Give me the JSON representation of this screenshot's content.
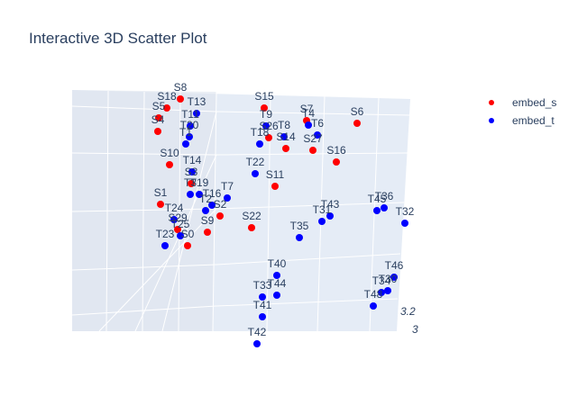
{
  "title": "Interactive 3D Scatter Plot",
  "legend": [
    {
      "name": "embed_s",
      "color": "#ff0000"
    },
    {
      "name": "embed_t",
      "color": "#0000ff"
    }
  ],
  "chart_data": {
    "type": "scatter",
    "title": "Interactive 3D Scatter Plot",
    "axis_tick_labels_visible": [
      "3.2",
      "3"
    ],
    "colors": {
      "embed_s": "#ff0000",
      "embed_t": "#0000ff",
      "scene_bg": "#e5ecf6",
      "grid": "#ffffff"
    },
    "series": [
      {
        "name": "embed_s",
        "points": [
          {
            "label": "S8"
          },
          {
            "label": "S18"
          },
          {
            "label": "S5"
          },
          {
            "label": "S4"
          },
          {
            "label": "S10"
          },
          {
            "label": "S27"
          },
          {
            "label": "S1"
          },
          {
            "label": "S29"
          },
          {
            "label": "S9"
          },
          {
            "label": "S22"
          },
          {
            "label": "S11"
          },
          {
            "label": "S16"
          },
          {
            "label": "S6"
          },
          {
            "label": "S15"
          },
          {
            "label": "S2"
          },
          {
            "label": "S26"
          },
          {
            "label": "S3"
          },
          {
            "label": "S0"
          },
          {
            "label": "S14"
          },
          {
            "label": "S7"
          }
        ]
      },
      {
        "name": "embed_t",
        "points": [
          {
            "label": "T13"
          },
          {
            "label": "T11"
          },
          {
            "label": "T20"
          },
          {
            "label": "T1"
          },
          {
            "label": "T14"
          },
          {
            "label": "T3"
          },
          {
            "label": "T19"
          },
          {
            "label": "T16"
          },
          {
            "label": "T2"
          },
          {
            "label": "T7"
          },
          {
            "label": "T24"
          },
          {
            "label": "T25"
          },
          {
            "label": "T23"
          },
          {
            "label": "T9"
          },
          {
            "label": "T8"
          },
          {
            "label": "T4"
          },
          {
            "label": "T18"
          },
          {
            "label": "T22"
          },
          {
            "label": "T6"
          },
          {
            "label": "T43"
          },
          {
            "label": "T31"
          },
          {
            "label": "T35"
          },
          {
            "label": "T45"
          },
          {
            "label": "T36"
          },
          {
            "label": "T32"
          },
          {
            "label": "T40"
          },
          {
            "label": "T33"
          },
          {
            "label": "T44"
          },
          {
            "label": "T41"
          },
          {
            "label": "T42"
          },
          {
            "label": "T46"
          },
          {
            "label": "T30"
          },
          {
            "label": "T34"
          },
          {
            "label": "T48"
          }
        ]
      }
    ]
  }
}
